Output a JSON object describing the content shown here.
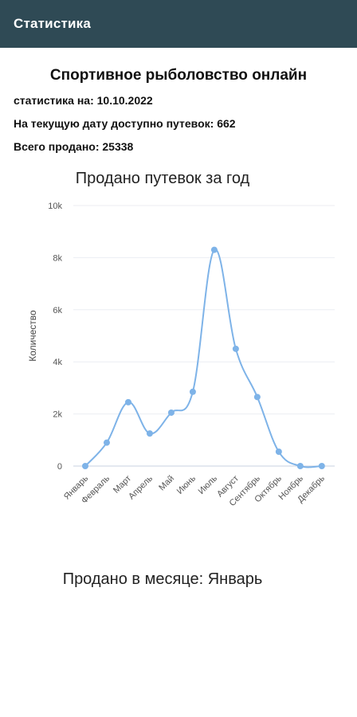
{
  "appbar": {
    "title": "Статистика"
  },
  "header": {
    "title": "Спортивное рыболовство онлайн",
    "stats_date": "статистика на: 10.10.2022",
    "available": "На текущую дату доступно путевок: 662",
    "total_sold": "Всего продано: 25338"
  },
  "chart_data": {
    "type": "line",
    "title": "Продано путевок за год",
    "xlabel": "",
    "ylabel": "Количество",
    "categories": [
      "Январь",
      "Февраль",
      "Март",
      "Апрель",
      "Май",
      "Июнь",
      "Июль",
      "Август",
      "Сентябрь",
      "Октябрь",
      "Ноябрь",
      "Декабрь"
    ],
    "y_ticks": [
      "0",
      "2k",
      "4k",
      "6k",
      "8k",
      "10k"
    ],
    "series": [
      {
        "values": [
          0,
          900,
          2450,
          1250,
          2050,
          2850,
          8300,
          4500,
          2650,
          550,
          0,
          0
        ]
      }
    ],
    "ylim": [
      0,
      10000
    ],
    "grid": true,
    "legend": "none",
    "line_color": "#7eb3e8"
  },
  "month_section": {
    "title": "Продано в месяце: Январь"
  }
}
